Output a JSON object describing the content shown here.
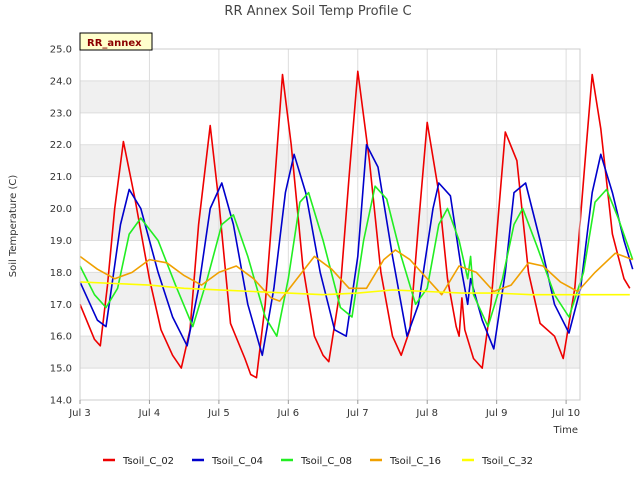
{
  "chart_data": {
    "type": "line",
    "title": "RR Annex Soil Temp Profile C",
    "xlabel": "Time",
    "ylabel": "Soil Temperature (C)",
    "ylim": [
      14.0,
      25.0
    ],
    "xlim_days": [
      3,
      10.2
    ],
    "y_ticks": [
      "14.0",
      "15.0",
      "16.0",
      "17.0",
      "18.0",
      "19.0",
      "20.0",
      "21.0",
      "22.0",
      "23.0",
      "24.0",
      "25.0"
    ],
    "x_ticks": [
      "Jul 3",
      "Jul 4",
      "Jul 5",
      "Jul 6",
      "Jul 7",
      "Jul 8",
      "Jul 9",
      "Jul 10"
    ],
    "grid": true,
    "legend_position": "bottom",
    "annotation": "RR_annex",
    "series": [
      {
        "name": "Tsoil_C_02",
        "color": "#ee0000",
        "points": [
          [
            "Jul 3 00:00",
            17.0
          ],
          [
            "Jul 3 05:00",
            15.9
          ],
          [
            "Jul 3 07:00",
            15.7
          ],
          [
            "Jul 3 09:30",
            17.6
          ],
          [
            "Jul 3 12:00",
            20.0
          ],
          [
            "Jul 3 15:00",
            22.1
          ],
          [
            "Jul 3 19:00",
            20.3
          ],
          [
            "Jul 4 00:00",
            17.8
          ],
          [
            "Jul 4 04:00",
            16.2
          ],
          [
            "Jul 4 08:00",
            15.4
          ],
          [
            "Jul 4 11:00",
            15.0
          ],
          [
            "Jul 4 14:00",
            16.2
          ],
          [
            "Jul 4 17:00",
            19.5
          ],
          [
            "Jul 4 21:00",
            22.6
          ],
          [
            "Jul 5 00:00",
            20.2
          ],
          [
            "Jul 5 04:00",
            16.4
          ],
          [
            "Jul 5 09:00",
            15.3
          ],
          [
            "Jul 5 11:00",
            14.8
          ],
          [
            "Jul 5 13:00",
            14.7
          ],
          [
            "Jul 5 16:00",
            17.0
          ],
          [
            "Jul 5 19:00",
            20.5
          ],
          [
            "Jul 5 22:00",
            24.2
          ],
          [
            "Jul 6 01:00",
            22.0
          ],
          [
            "Jul 6 05:00",
            18.2
          ],
          [
            "Jul 6 09:00",
            16.0
          ],
          [
            "Jul 6 12:00",
            15.4
          ],
          [
            "Jul 6 14:00",
            15.2
          ],
          [
            "Jul 6 18:00",
            17.5
          ],
          [
            "Jul 6 21:00",
            21.0
          ],
          [
            "Jul 7 00:00",
            24.3
          ],
          [
            "Jul 7 04:00",
            21.5
          ],
          [
            "Jul 7 08:00",
            18.0
          ],
          [
            "Jul 7 12:00",
            16.0
          ],
          [
            "Jul 7 15:00",
            15.4
          ],
          [
            "Jul 7 18:00",
            16.2
          ],
          [
            "Jul 7 21:00",
            19.5
          ],
          [
            "Jul 8 00:00",
            22.7
          ],
          [
            "Jul 8 04:00",
            20.5
          ],
          [
            "Jul 8 07:00",
            17.8
          ],
          [
            "Jul 8 10:00",
            16.3
          ],
          [
            "Jul 8 11:00",
            16.0
          ],
          [
            "Jul 8 12:00",
            17.2
          ],
          [
            "Jul 8 13:00",
            16.2
          ],
          [
            "Jul 8 16:00",
            15.3
          ],
          [
            "Jul 8 19:00",
            15.0
          ],
          [
            "Jul 8 22:00",
            17.0
          ],
          [
            "Jul 9 03:00",
            22.4
          ],
          [
            "Jul 9 07:00",
            21.5
          ],
          [
            "Jul 9 11:00",
            18.0
          ],
          [
            "Jul 9 15:00",
            16.4
          ],
          [
            "Jul 9 20:00",
            16.0
          ],
          [
            "Jul 9 23:00",
            15.3
          ],
          [
            "Jul 10 03:00",
            17.5
          ],
          [
            "Jul 10 07:00",
            22.0
          ],
          [
            "Jul 10 09:00",
            24.2
          ],
          [
            "Jul 10 12:00",
            22.5
          ],
          [
            "Jul 10 16:00",
            19.2
          ],
          [
            "Jul 10 20:00",
            17.8
          ],
          [
            "Jul 10 22:00",
            17.5
          ]
        ]
      },
      {
        "name": "Tsoil_C_04",
        "color": "#0000cc",
        "points": [
          [
            "Jul 3 00:00",
            17.7
          ],
          [
            "Jul 3 06:00",
            16.5
          ],
          [
            "Jul 3 09:00",
            16.3
          ],
          [
            "Jul 3 14:00",
            19.5
          ],
          [
            "Jul 3 17:00",
            20.6
          ],
          [
            "Jul 3 21:00",
            20.0
          ],
          [
            "Jul 4 03:00",
            18.0
          ],
          [
            "Jul 4 08:00",
            16.6
          ],
          [
            "Jul 4 13:00",
            15.7
          ],
          [
            "Jul 4 17:00",
            17.5
          ],
          [
            "Jul 4 21:00",
            20.0
          ],
          [
            "Jul 5 01:00",
            20.8
          ],
          [
            "Jul 5 05:00",
            19.5
          ],
          [
            "Jul 5 10:00",
            17.0
          ],
          [
            "Jul 5 15:00",
            15.4
          ],
          [
            "Jul 5 19:00",
            17.5
          ],
          [
            "Jul 5 23:00",
            20.5
          ],
          [
            "Jul 6 02:00",
            21.7
          ],
          [
            "Jul 6 06:00",
            20.5
          ],
          [
            "Jul 6 11:00",
            18.0
          ],
          [
            "Jul 6 16:00",
            16.2
          ],
          [
            "Jul 6 20:00",
            16.0
          ],
          [
            "Jul 7 00:00",
            18.5
          ],
          [
            "Jul 7 03:00",
            22.0
          ],
          [
            "Jul 7 07:00",
            21.3
          ],
          [
            "Jul 7 12:00",
            18.5
          ],
          [
            "Jul 7 17:00",
            16.0
          ],
          [
            "Jul 7 21:00",
            17.0
          ],
          [
            "Jul 8 02:00",
            20.0
          ],
          [
            "Jul 8 04:00",
            20.8
          ],
          [
            "Jul 8 08:00",
            20.4
          ],
          [
            "Jul 8 12:00",
            18.0
          ],
          [
            "Jul 8 14:00",
            17.0
          ],
          [
            "Jul 8 15:00",
            17.8
          ],
          [
            "Jul 8 19:00",
            16.5
          ],
          [
            "Jul 8 23:00",
            15.6
          ],
          [
            "Jul 9 03:00",
            18.0
          ],
          [
            "Jul 9 06:00",
            20.5
          ],
          [
            "Jul 9 10:00",
            20.8
          ],
          [
            "Jul 9 15:00",
            19.0
          ],
          [
            "Jul 9 20:00",
            17.0
          ],
          [
            "Jul 10 01:00",
            16.1
          ],
          [
            "Jul 10 05:00",
            17.5
          ],
          [
            "Jul 10 09:00",
            20.5
          ],
          [
            "Jul 10 12:00",
            21.7
          ],
          [
            "Jul 10 16:00",
            20.5
          ],
          [
            "Jul 10 20:00",
            19.0
          ],
          [
            "Jul 10 23:00",
            18.1
          ]
        ]
      },
      {
        "name": "Tsoil_C_08",
        "color": "#22ee22",
        "points": [
          [
            "Jul 3 00:00",
            18.2
          ],
          [
            "Jul 3 05:00",
            17.3
          ],
          [
            "Jul 3 09:00",
            16.9
          ],
          [
            "Jul 3 13:00",
            17.5
          ],
          [
            "Jul 3 17:00",
            19.2
          ],
          [
            "Jul 3 21:00",
            19.7
          ],
          [
            "Jul 4 03:00",
            19.0
          ],
          [
            "Jul 4 09:00",
            17.6
          ],
          [
            "Jul 4 15:00",
            16.3
          ],
          [
            "Jul 4 20:00",
            17.8
          ],
          [
            "Jul 5 01:00",
            19.5
          ],
          [
            "Jul 5 05:00",
            19.8
          ],
          [
            "Jul 5 10:00",
            18.5
          ],
          [
            "Jul 5 16:00",
            16.6
          ],
          [
            "Jul 5 20:00",
            16.0
          ],
          [
            "Jul 6 00:00",
            17.8
          ],
          [
            "Jul 6 04:00",
            20.2
          ],
          [
            "Jul 6 07:00",
            20.5
          ],
          [
            "Jul 6 12:00",
            19.0
          ],
          [
            "Jul 6 18:00",
            16.9
          ],
          [
            "Jul 6 22:00",
            16.6
          ],
          [
            "Jul 7 02:00",
            19.0
          ],
          [
            "Jul 7 06:00",
            20.7
          ],
          [
            "Jul 7 10:00",
            20.3
          ],
          [
            "Jul 7 15:00",
            18.5
          ],
          [
            "Jul 7 20:00",
            17.0
          ],
          [
            "Jul 8 00:00",
            17.5
          ],
          [
            "Jul 8 04:00",
            19.5
          ],
          [
            "Jul 8 07:00",
            20.0
          ],
          [
            "Jul 8 11:00",
            19.0
          ],
          [
            "Jul 8 14:00",
            17.8
          ],
          [
            "Jul 8 15:00",
            18.5
          ],
          [
            "Jul 8 16:00",
            17.3
          ],
          [
            "Jul 8 21:00",
            16.3
          ],
          [
            "Jul 9 02:00",
            17.8
          ],
          [
            "Jul 9 06:00",
            19.5
          ],
          [
            "Jul 9 09:00",
            20.0
          ],
          [
            "Jul 9 14:00",
            18.8
          ],
          [
            "Jul 9 20:00",
            17.3
          ],
          [
            "Jul 10 01:00",
            16.6
          ],
          [
            "Jul 10 06:00",
            18.0
          ],
          [
            "Jul 10 10:00",
            20.2
          ],
          [
            "Jul 10 14:00",
            20.6
          ],
          [
            "Jul 10 18:00",
            19.7
          ],
          [
            "Jul 10 23:00",
            18.4
          ]
        ]
      },
      {
        "name": "Tsoil_C_16",
        "color": "#f0a000",
        "points": [
          [
            "Jul 3 00:00",
            18.5
          ],
          [
            "Jul 3 06:00",
            18.1
          ],
          [
            "Jul 3 12:00",
            17.8
          ],
          [
            "Jul 3 18:00",
            18.0
          ],
          [
            "Jul 4 00:00",
            18.4
          ],
          [
            "Jul 4 06:00",
            18.3
          ],
          [
            "Jul 4 12:00",
            17.9
          ],
          [
            "Jul 4 18:00",
            17.6
          ],
          [
            "Jul 5 00:00",
            18.0
          ],
          [
            "Jul 5 06:00",
            18.2
          ],
          [
            "Jul 5 12:00",
            17.8
          ],
          [
            "Jul 5 18:00",
            17.2
          ],
          [
            "Jul 5 21:00",
            17.1
          ],
          [
            "Jul 6 03:00",
            17.8
          ],
          [
            "Jul 6 09:00",
            18.5
          ],
          [
            "Jul 6 15:00",
            18.1
          ],
          [
            "Jul 6 21:00",
            17.5
          ],
          [
            "Jul 7 03:00",
            17.5
          ],
          [
            "Jul 7 09:00",
            18.4
          ],
          [
            "Jul 7 13:00",
            18.7
          ],
          [
            "Jul 7 18:00",
            18.4
          ],
          [
            "Jul 8 00:00",
            17.8
          ],
          [
            "Jul 8 05:00",
            17.3
          ],
          [
            "Jul 8 11:00",
            18.2
          ],
          [
            "Jul 8 17:00",
            18.0
          ],
          [
            "Jul 8 23:00",
            17.4
          ],
          [
            "Jul 9 05:00",
            17.6
          ],
          [
            "Jul 9 11:00",
            18.3
          ],
          [
            "Jul 9 16:00",
            18.2
          ],
          [
            "Jul 9 22:00",
            17.7
          ],
          [
            "Jul 10 04:00",
            17.4
          ],
          [
            "Jul 10 10:00",
            18.0
          ],
          [
            "Jul 10 17:00",
            18.6
          ],
          [
            "Jul 10 23:00",
            18.4
          ]
        ]
      },
      {
        "name": "Tsoil_C_32",
        "color": "#ffff00",
        "points": [
          [
            "Jul 3 00:00",
            17.7
          ],
          [
            "Jul 3 12:00",
            17.65
          ],
          [
            "Jul 4 00:00",
            17.6
          ],
          [
            "Jul 4 12:00",
            17.5
          ],
          [
            "Jul 5 00:00",
            17.45
          ],
          [
            "Jul 5 12:00",
            17.4
          ],
          [
            "Jul 6 00:00",
            17.35
          ],
          [
            "Jul 6 12:00",
            17.3
          ],
          [
            "Jul 7 00:00",
            17.35
          ],
          [
            "Jul 7 12:00",
            17.45
          ],
          [
            "Jul 8 00:00",
            17.4
          ],
          [
            "Jul 8 12:00",
            17.35
          ],
          [
            "Jul 9 00:00",
            17.35
          ],
          [
            "Jul 9 12:00",
            17.3
          ],
          [
            "Jul 10 00:00",
            17.3
          ],
          [
            "Jul 10 12:00",
            17.3
          ],
          [
            "Jul 10 22:00",
            17.3
          ]
        ]
      }
    ]
  }
}
